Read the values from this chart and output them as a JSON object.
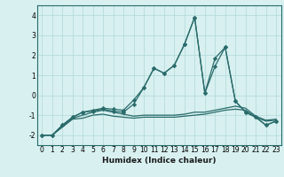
{
  "xlabel": "Humidex (Indice chaleur)",
  "x": [
    0,
    1,
    2,
    3,
    4,
    5,
    6,
    7,
    8,
    9,
    10,
    11,
    12,
    13,
    14,
    15,
    16,
    17,
    18,
    19,
    20,
    21,
    22,
    23
  ],
  "series": [
    [
      -2.0,
      -2.0,
      -1.6,
      -1.2,
      -1.15,
      -1.0,
      -0.95,
      -1.05,
      -1.1,
      -1.15,
      -1.1,
      -1.1,
      -1.1,
      -1.1,
      -1.05,
      -1.0,
      -0.95,
      -0.85,
      -0.75,
      -0.7,
      -0.75,
      -1.1,
      -1.3,
      -1.25
    ],
    [
      -2.0,
      -2.0,
      -1.55,
      -1.15,
      -1.0,
      -0.85,
      -0.75,
      -0.85,
      -0.95,
      -1.05,
      -1.0,
      -1.0,
      -1.0,
      -1.0,
      -0.95,
      -0.85,
      -0.85,
      -0.75,
      -0.65,
      -0.55,
      -0.65,
      -1.05,
      -1.25,
      -1.2
    ],
    [
      -2.0,
      -2.0,
      -1.5,
      -1.1,
      -0.85,
      -0.8,
      -0.7,
      -0.8,
      -0.85,
      -0.45,
      0.38,
      1.35,
      1.1,
      1.5,
      2.55,
      3.9,
      0.1,
      1.85,
      2.4,
      -0.3,
      -0.85,
      -1.1,
      -1.5,
      -1.3
    ],
    [
      -2.0,
      -2.0,
      -1.5,
      -1.1,
      -0.85,
      -0.75,
      -0.65,
      -0.7,
      -0.75,
      -0.25,
      0.38,
      1.35,
      1.1,
      1.5,
      2.55,
      3.9,
      0.1,
      1.45,
      2.4,
      -0.3,
      -0.85,
      -1.1,
      -1.5,
      -1.3
    ]
  ],
  "line_color": "#2a6b6b",
  "bg_color": "#d8f0f0",
  "grid_color": "#b0d8d8",
  "ylim": [
    -2.5,
    4.5
  ],
  "yticks": [
    -2,
    -1,
    0,
    1,
    2,
    3,
    4
  ],
  "marker": "D",
  "markersize": 2.2,
  "linewidth": 0.9,
  "tick_fontsize": 5.5,
  "xlabel_fontsize": 6.5
}
